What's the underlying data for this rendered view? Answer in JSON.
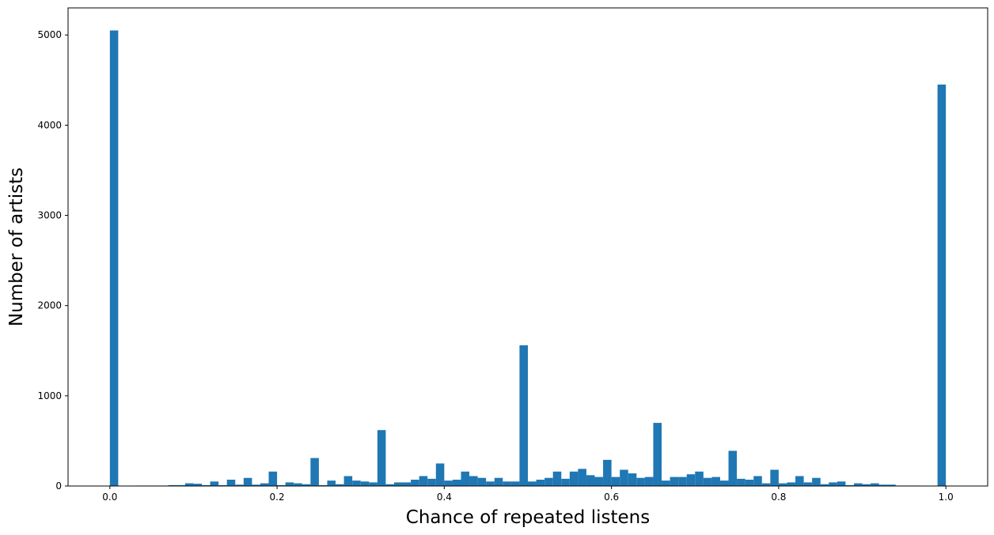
{
  "chart_data": {
    "type": "bar",
    "xlabel": "Chance of repeated listens",
    "ylabel": "Number of artists",
    "xlim": [
      -0.05,
      1.05
    ],
    "ylim": [
      0,
      5300
    ],
    "x_ticks": [
      0.0,
      0.2,
      0.4,
      0.6,
      0.8,
      1.0
    ],
    "x_tick_labels": [
      "0.0",
      "0.2",
      "0.4",
      "0.6",
      "0.8",
      "1.0"
    ],
    "y_ticks": [
      0,
      1000,
      2000,
      3000,
      4000,
      5000
    ],
    "y_tick_labels": [
      "0",
      "1000",
      "2000",
      "3000",
      "4000",
      "5000"
    ],
    "grid": false,
    "bar_color": "#1f77b4",
    "bin_width": 0.01,
    "bin_start": 0.0,
    "values": [
      5050,
      0,
      0,
      5,
      5,
      5,
      5,
      10,
      10,
      30,
      25,
      10,
      50,
      10,
      70,
      15,
      90,
      15,
      30,
      160,
      10,
      40,
      30,
      20,
      310,
      10,
      60,
      20,
      110,
      60,
      50,
      40,
      620,
      20,
      40,
      40,
      70,
      110,
      80,
      250,
      60,
      70,
      160,
      110,
      90,
      50,
      90,
      50,
      50,
      1560,
      50,
      70,
      90,
      160,
      80,
      160,
      190,
      120,
      100,
      290,
      100,
      180,
      140,
      90,
      100,
      700,
      60,
      100,
      100,
      130,
      160,
      90,
      100,
      60,
      390,
      80,
      70,
      110,
      30,
      180,
      30,
      40,
      110,
      40,
      90,
      20,
      40,
      50,
      10,
      30,
      20,
      30,
      15,
      15,
      5,
      5,
      5,
      0,
      0,
      4450
    ]
  }
}
